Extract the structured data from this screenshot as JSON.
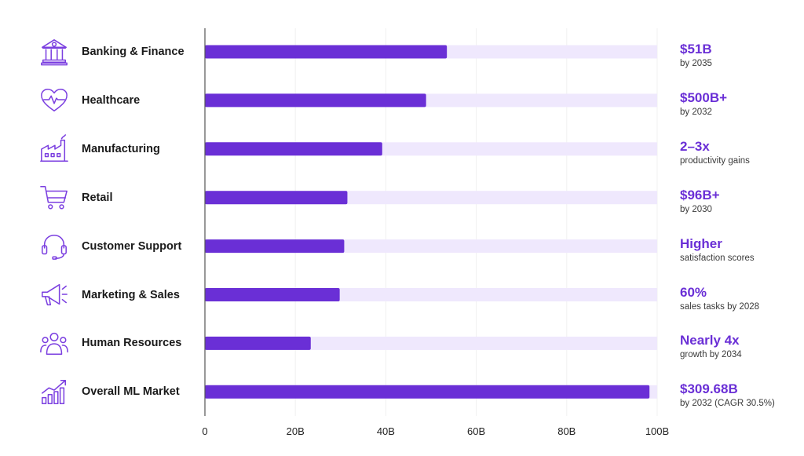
{
  "colors": {
    "bar": "#6a2fd6",
    "track": "#efe8fd",
    "icon": "#7b3fe0",
    "axis": "#555555",
    "grid": "#f1f1f1"
  },
  "chart_data": {
    "type": "bar",
    "orientation": "horizontal",
    "categories": [
      "Banking & Finance",
      "Healthcare",
      "Manufacturing",
      "Retail",
      "Customer Support",
      "Marketing & Sales",
      "Human Resources",
      "Overall ML Market"
    ],
    "values": [
      53.5,
      48.9,
      39.2,
      31.5,
      30.8,
      29.8,
      23.4,
      98.3
    ],
    "xlim": [
      0,
      100
    ],
    "x_ticks": [
      "0",
      "20B",
      "40B",
      "60B",
      "80B",
      "100B"
    ],
    "icons": [
      "bank-icon",
      "heart-pulse-icon",
      "factory-icon",
      "shopping-cart-icon",
      "headset-icon",
      "megaphone-icon",
      "people-group-icon",
      "growth-chart-icon"
    ],
    "annotations": [
      {
        "value": "$51B",
        "note": "by 2035"
      },
      {
        "value": "$500B+",
        "note": "by 2032"
      },
      {
        "value": "2–3x",
        "note": "productivity gains"
      },
      {
        "value": "$96B+",
        "note": "by 2030"
      },
      {
        "value": "Higher",
        "note": "satisfaction scores"
      },
      {
        "value": "60%",
        "note": "sales tasks by 2028"
      },
      {
        "value": "Nearly 4x",
        "note": "growth by 2034"
      },
      {
        "value": "$309.68B",
        "note": "by 2032 (CAGR 30.5%)"
      }
    ]
  }
}
